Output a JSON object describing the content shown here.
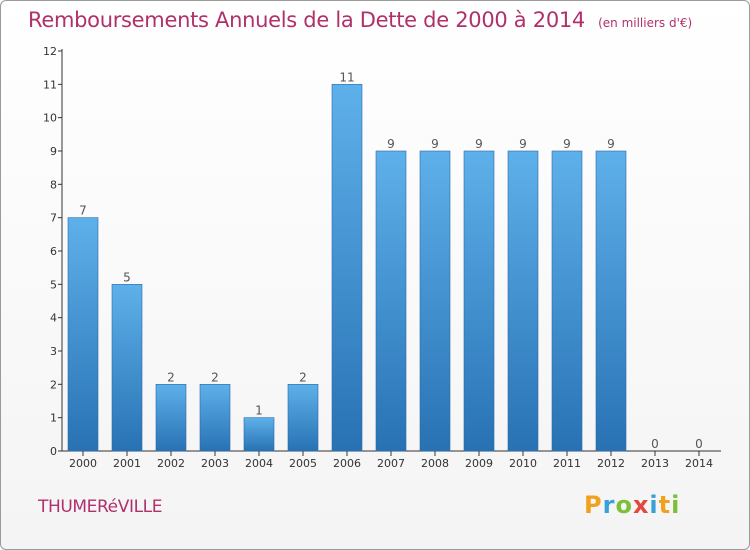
{
  "chart_data": {
    "type": "bar",
    "title": "Remboursements Annuels de la Dette de 2000 à 2014",
    "unit_note": "(en milliers d'€)",
    "categories": [
      "2000",
      "2001",
      "2002",
      "2003",
      "2004",
      "2005",
      "2006",
      "2007",
      "2008",
      "2009",
      "2010",
      "2011",
      "2012",
      "2013",
      "2014"
    ],
    "values": [
      7,
      5,
      2,
      2,
      1,
      2,
      11,
      9,
      9,
      9,
      9,
      9,
      9,
      0,
      0
    ],
    "data_labels": [
      "7",
      "5",
      "2",
      "2",
      "1",
      "2",
      "11",
      "9",
      "9",
      "9",
      "9",
      "9",
      "9",
      "0",
      "0"
    ],
    "ylim": [
      0,
      12
    ],
    "yticks": [
      "0",
      "1",
      "2",
      "3",
      "4",
      "5",
      "6",
      "7",
      "8",
      "9",
      "10",
      "11",
      "12"
    ],
    "xlabel": "",
    "ylabel": "",
    "grid": false,
    "legend": "none",
    "colors": {
      "bar_light": "#5eb0ea",
      "bar_dark": "#2872b4",
      "title": "#b0306b",
      "axis": "#333333"
    }
  },
  "footer": {
    "commune": "THUMERéVILLE",
    "brand_letters": [
      {
        "char": "P",
        "color": "#f0a21e"
      },
      {
        "char": "r",
        "color": "#3aa1d8"
      },
      {
        "char": "o",
        "color": "#7bbf3a"
      },
      {
        "char": "x",
        "color": "#e5473a"
      },
      {
        "char": "i",
        "color": "#3aa1d8"
      },
      {
        "char": "t",
        "color": "#f0a21e"
      },
      {
        "char": "i",
        "color": "#7bbf3a"
      }
    ]
  }
}
